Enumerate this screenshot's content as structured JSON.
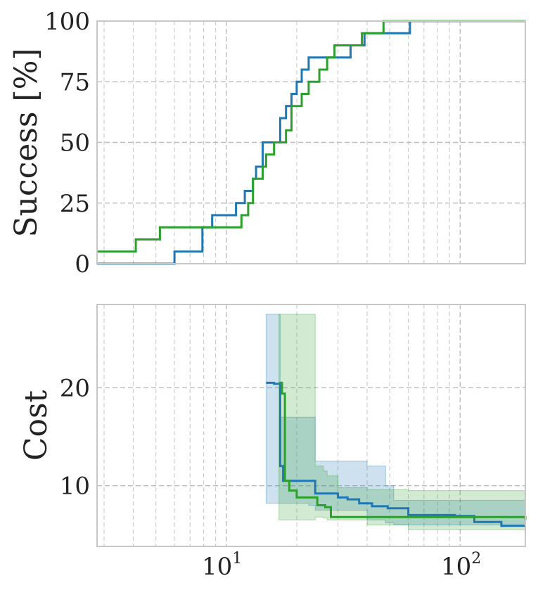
{
  "chart_data": [
    {
      "type": "line",
      "x_scale": "log",
      "xlim": [
        2.8,
        190
      ],
      "ylim": [
        0,
        100
      ],
      "ylabel": "Success [%]",
      "yticks": [
        0,
        25,
        50,
        75,
        100
      ],
      "xtick_labels": [],
      "grid": true,
      "colors": [
        "#1f77b4",
        "#2ca02c"
      ],
      "series": [
        {
          "color": "#1f77b4",
          "step_x": [
            2.8,
            6.0,
            7.9,
            8.7,
            11.0,
            12.0,
            13.0,
            13.4,
            14.3,
            15.0,
            17.0,
            18.0,
            19.0,
            20.0,
            21.0,
            22.5,
            23.5,
            25.0,
            27.0,
            34.0,
            39.0,
            41.0,
            43.0,
            61.0,
            190
          ],
          "step_y": [
            0,
            5,
            15,
            20,
            25,
            30,
            35,
            40,
            50,
            50,
            60,
            65,
            70,
            75,
            80,
            85,
            85,
            85,
            85,
            90,
            95,
            95,
            95,
            100,
            100
          ]
        },
        {
          "color": "#2ca02c",
          "step_x": [
            2.8,
            4.1,
            5.2,
            8.0,
            11.6,
            12.4,
            13.0,
            14.3,
            14.8,
            16.0,
            18.0,
            19.0,
            21.0,
            22.5,
            25.0,
            27.0,
            29.0,
            34.0,
            38.0,
            41.0,
            45.0,
            47.0,
            190
          ],
          "step_y": [
            5,
            10,
            15,
            15,
            20,
            25,
            35,
            40,
            45,
            50,
            55,
            65,
            70,
            75,
            80,
            85,
            90,
            90,
            95,
            95,
            95,
            100,
            100
          ]
        }
      ]
    },
    {
      "type": "area",
      "x_scale": "log",
      "xlim": [
        2.8,
        190
      ],
      "ylim": [
        3.8,
        28.5
      ],
      "ylabel": "Cost",
      "yticks": [
        10,
        20
      ],
      "xtick_labels": [
        "10",
        "10"
      ],
      "xtick_exponents": [
        "1",
        "2"
      ],
      "grid": true,
      "colors": [
        "#1f77b4",
        "#2ca02c"
      ],
      "series": [
        {
          "color": "#1f77b4",
          "median_x": [
            14.8,
            16.0,
            16.8,
            17.0,
            17.5,
            18.5,
            19.0,
            22.5,
            24.0,
            27.0,
            30.0,
            33.0,
            37.0,
            42.0,
            49.0,
            52.0,
            60.0,
            70.0,
            95.0,
            115.0,
            150.0,
            190
          ],
          "median_y": [
            20.5,
            20.4,
            20.4,
            12.0,
            10.5,
            10.5,
            10.5,
            10.5,
            9.2,
            9.2,
            8.8,
            8.6,
            8.2,
            7.9,
            7.7,
            7.7,
            7.0,
            7.0,
            6.9,
            6.3,
            5.9,
            5.9
          ],
          "band_x": [
            14.8,
            16.8,
            17.0,
            22.5,
            24.0,
            40.0,
            48.0,
            52.0,
            190
          ],
          "band_upper": [
            27.5,
            27.5,
            17.0,
            17.0,
            12.5,
            12.0,
            10.0,
            8.5,
            8.5
          ],
          "band_lower": [
            8.2,
            8.2,
            8.2,
            8.0,
            7.5,
            6.5,
            6.2,
            6.0,
            5.0
          ]
        },
        {
          "color": "#2ca02c",
          "median_x": [
            16.8,
            17.3,
            17.8,
            18.6,
            19.0,
            20.0,
            23.5,
            24.5,
            26.5,
            28.0,
            130.0,
            190
          ],
          "median_y": [
            20.5,
            19.4,
            10.5,
            9.5,
            9.5,
            8.8,
            8.8,
            8.0,
            7.8,
            6.8,
            6.8,
            6.5
          ],
          "band_x": [
            16.8,
            23.5,
            24.0,
            26.0,
            27.0,
            30.0,
            40.0,
            60.0,
            190
          ],
          "band_upper": [
            27.5,
            27.5,
            12.0,
            11.5,
            11.0,
            9.8,
            9.6,
            9.5,
            9.5
          ],
          "band_lower": [
            6.5,
            6.5,
            6.8,
            6.7,
            6.5,
            6.5,
            6.0,
            5.5,
            4.8
          ]
        }
      ]
    }
  ]
}
